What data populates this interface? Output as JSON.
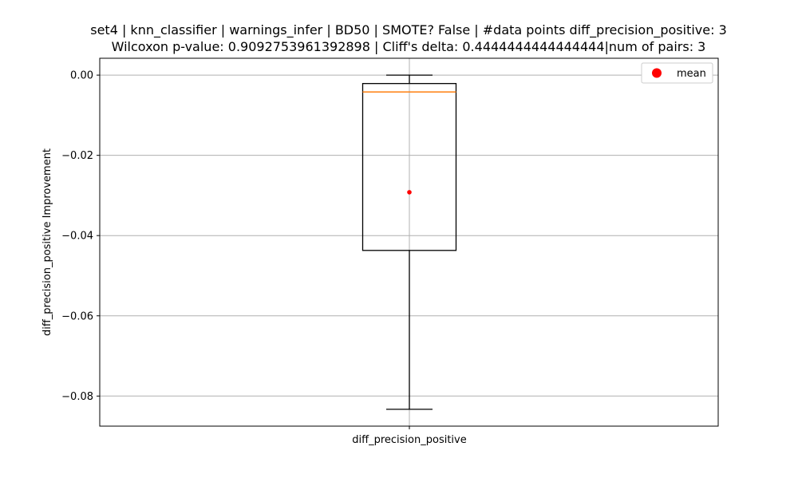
{
  "chart_data": {
    "type": "box",
    "title": "set4 | knn_classifier | warnings_infer | BD50 | SMOTE? False | #data points diff_precision_positive: 3",
    "subtitle": "Wilcoxon p-value: 0.9092753961392898 | Cliff's delta: 0.4444444444444444|num of pairs: 3",
    "xlabel": "",
    "ylabel": "diff_precision_positive Improvement",
    "categories": [
      "diff_precision_positive"
    ],
    "box": {
      "whisker_low": -0.0833,
      "q1": -0.0437,
      "median": -0.0042,
      "q3": -0.0021,
      "whisker_high": 0.0,
      "mean": -0.0292
    },
    "ylim": [
      -0.0875,
      0.0042
    ],
    "yticks": [
      0.0,
      -0.02,
      -0.04,
      -0.06,
      -0.08
    ],
    "ytick_labels": [
      "0.00",
      "−0.02",
      "−0.04",
      "−0.06",
      "−0.08"
    ],
    "grid": true,
    "legend": {
      "position": "top-right",
      "entries": [
        "mean"
      ]
    },
    "colors": {
      "box": "#000000",
      "median": "#ff7f0e",
      "mean": "#ff0000",
      "grid": "#b0b0b0"
    }
  }
}
